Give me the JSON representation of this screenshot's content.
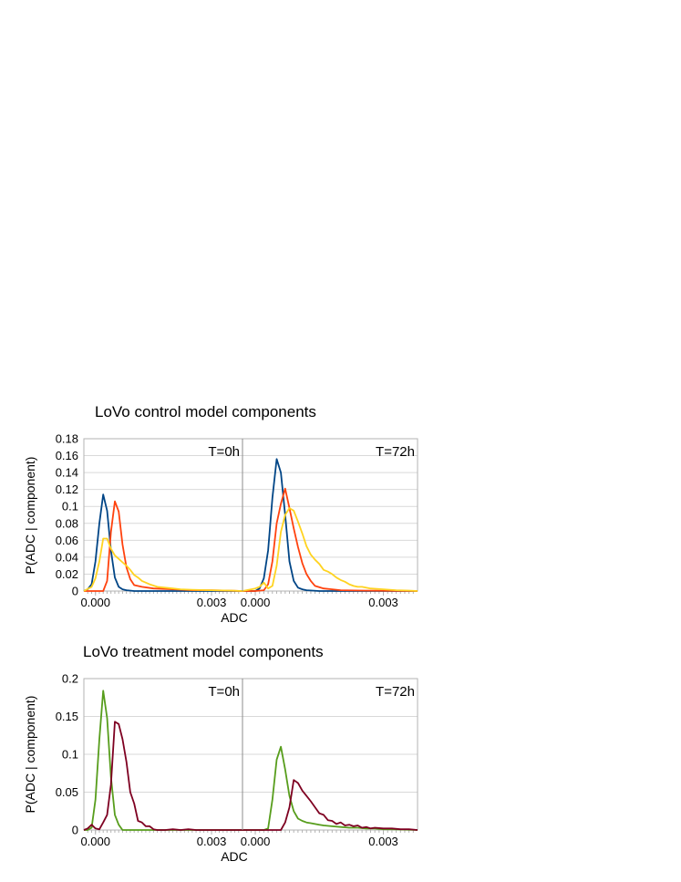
{
  "chart_data": [
    {
      "type": "line",
      "title": "LoVo control model components",
      "xlabel": "ADC",
      "ylabel": "P(ADC | component)",
      "ylim": [
        0,
        0.18
      ],
      "yticks": [
        "0",
        "0.02",
        "0.04",
        "0.06",
        "0.08",
        "0.1",
        "0.12",
        "0.14",
        "0.16",
        "0.18"
      ],
      "grid": true,
      "legend": "none",
      "panels": [
        {
          "label": "T=0h",
          "xlim": [
            -0.0003,
            0.0038
          ],
          "xticks": [
            "0.000",
            "0.003"
          ],
          "series": [
            {
              "color": "#004586",
              "x": [
                -0.0003,
                -0.0002,
                -0.0001,
                0.0,
                0.0001,
                0.0002,
                0.0003,
                0.0004,
                0.0005,
                0.0006,
                0.0007,
                0.0008,
                0.001,
                0.0012,
                0.0015,
                0.002,
                0.0038
              ],
              "y": [
                0,
                0.002,
                0.008,
                0.035,
                0.08,
                0.114,
                0.095,
                0.048,
                0.016,
                0.005,
                0.002,
                0.001,
                0,
                0,
                0,
                0,
                0
              ]
            },
            {
              "color": "#ff420e",
              "x": [
                -0.0003,
                0.0,
                0.0002,
                0.0003,
                0.0004,
                0.0005,
                0.0006,
                0.0007,
                0.0008,
                0.0009,
                0.001,
                0.0012,
                0.0015,
                0.002,
                0.0025,
                0.003,
                0.0038
              ],
              "y": [
                0,
                0,
                0,
                0.012,
                0.07,
                0.106,
                0.094,
                0.055,
                0.028,
                0.014,
                0.007,
                0.005,
                0.003,
                0.002,
                0.001,
                0.001,
                0
              ]
            },
            {
              "color": "#ffd320",
              "x": [
                -0.0003,
                -0.0001,
                0.0,
                0.0001,
                0.0002,
                0.0003,
                0.0004,
                0.0005,
                0.0006,
                0.0007,
                0.0008,
                0.0009,
                0.001,
                0.0011,
                0.0012,
                0.0014,
                0.0016,
                0.0018,
                0.002,
                0.0022,
                0.0025,
                0.003,
                0.0035,
                0.0038
              ],
              "y": [
                0,
                0.005,
                0.015,
                0.035,
                0.062,
                0.062,
                0.05,
                0.042,
                0.038,
                0.034,
                0.03,
                0.025,
                0.019,
                0.016,
                0.012,
                0.008,
                0.005,
                0.004,
                0.003,
                0.002,
                0.0015,
                0.001,
                0.0005,
                0
              ]
            }
          ]
        },
        {
          "label": "T=72h",
          "xlim": [
            -0.0003,
            0.0038
          ],
          "xticks": [
            "0.000",
            "0.003"
          ],
          "series": [
            {
              "color": "#004586",
              "x": [
                -0.0003,
                0.0,
                0.0001,
                0.0002,
                0.0003,
                0.0004,
                0.0005,
                0.0006,
                0.0007,
                0.0008,
                0.0009,
                0.001,
                0.0011,
                0.0012,
                0.0015,
                0.002,
                0.0038
              ],
              "y": [
                0,
                0,
                0.003,
                0.015,
                0.048,
                0.11,
                0.156,
                0.14,
                0.09,
                0.035,
                0.012,
                0.004,
                0.002,
                0.001,
                0,
                0,
                0
              ]
            },
            {
              "color": "#ff420e",
              "x": [
                -0.0003,
                0.0,
                0.0002,
                0.0003,
                0.0004,
                0.0005,
                0.0006,
                0.0007,
                0.0008,
                0.0009,
                0.001,
                0.0011,
                0.0012,
                0.0013,
                0.0014,
                0.0016,
                0.0018,
                0.002,
                0.0025,
                0.0038
              ],
              "y": [
                0,
                0,
                0.001,
                0.008,
                0.035,
                0.08,
                0.103,
                0.121,
                0.098,
                0.074,
                0.052,
                0.033,
                0.02,
                0.012,
                0.006,
                0.003,
                0.002,
                0.001,
                0.0005,
                0
              ]
            },
            {
              "color": "#ffd320",
              "x": [
                -0.0003,
                0.0,
                0.0001,
                0.0002,
                0.0003,
                0.0004,
                0.0005,
                0.0006,
                0.0007,
                0.0008,
                0.0009,
                0.001,
                0.0011,
                0.0012,
                0.0013,
                0.0014,
                0.0015,
                0.0016,
                0.0017,
                0.0018,
                0.0019,
                0.002,
                0.0021,
                0.0022,
                0.0023,
                0.0024,
                0.0025,
                0.0027,
                0.003,
                0.0033,
                0.0036,
                0.0038
              ],
              "y": [
                0,
                0.003,
                0.005,
                0.01,
                0.003,
                0.006,
                0.03,
                0.07,
                0.09,
                0.098,
                0.095,
                0.082,
                0.068,
                0.053,
                0.043,
                0.037,
                0.032,
                0.025,
                0.023,
                0.02,
                0.016,
                0.013,
                0.011,
                0.008,
                0.006,
                0.005,
                0.005,
                0.003,
                0.002,
                0.001,
                0.0005,
                0
              ]
            }
          ]
        }
      ]
    },
    {
      "type": "line",
      "title": "LoVo treatment model components",
      "xlabel": "ADC",
      "ylabel": "P(ADC | component)",
      "ylim": [
        0,
        0.2
      ],
      "yticks": [
        "0",
        "0.05",
        "0.1",
        "0.15",
        "0.2"
      ],
      "grid": true,
      "legend": "none",
      "panels": [
        {
          "label": "T=0h",
          "xlim": [
            -0.0003,
            0.0038
          ],
          "xticks": [
            "0.000",
            "0.003"
          ],
          "series": [
            {
              "color": "#579d1c",
              "x": [
                -0.0003,
                -0.0002,
                -0.0001,
                0.0,
                0.0001,
                0.0002,
                0.0003,
                0.0004,
                0.0005,
                0.0006,
                0.0007,
                0.0008,
                0.0009,
                0.001,
                0.0015,
                0.002,
                0.0038
              ],
              "y": [
                0,
                0,
                0.003,
                0.04,
                0.12,
                0.184,
                0.148,
                0.07,
                0.02,
                0.007,
                0,
                0,
                0,
                0,
                0,
                0,
                0
              ]
            },
            {
              "color": "#7e0021",
              "x": [
                -0.0003,
                -0.0002,
                -0.0001,
                0.0,
                0.0001,
                0.0002,
                0.0003,
                0.0004,
                0.0005,
                0.0006,
                0.0007,
                0.0008,
                0.0009,
                0.001,
                0.0011,
                0.0012,
                0.0013,
                0.0014,
                0.0015,
                0.0016,
                0.0018,
                0.002,
                0.0022,
                0.0024,
                0.0026,
                0.003,
                0.0038
              ],
              "y": [
                0,
                0.002,
                0.007,
                0.002,
                0.001,
                0.01,
                0.02,
                0.06,
                0.143,
                0.14,
                0.12,
                0.09,
                0.05,
                0.035,
                0.012,
                0.01,
                0.005,
                0.005,
                0.001,
                0,
                0,
                0.001,
                0,
                0.001,
                0,
                0,
                0
              ]
            }
          ]
        },
        {
          "label": "T=72h",
          "xlim": [
            -0.0003,
            0.0038
          ],
          "xticks": [
            "0.000",
            "0.003"
          ],
          "series": [
            {
              "color": "#579d1c",
              "x": [
                -0.0003,
                0.0,
                0.0002,
                0.0003,
                0.0004,
                0.0005,
                0.0006,
                0.0007,
                0.0008,
                0.0009,
                0.001,
                0.0011,
                0.0012,
                0.0013,
                0.0014,
                0.0015,
                0.0016,
                0.0018,
                0.002,
                0.0022,
                0.0024,
                0.0026,
                0.0028,
                0.003,
                0.0032,
                0.0035,
                0.0038
              ],
              "y": [
                0,
                0,
                0,
                0.002,
                0.04,
                0.093,
                0.11,
                0.08,
                0.045,
                0.025,
                0.015,
                0.012,
                0.01,
                0.009,
                0.008,
                0.007,
                0.006,
                0.005,
                0.004,
                0.003,
                0.003,
                0.002,
                0.002,
                0.001,
                0.001,
                0.0005,
                0
              ]
            },
            {
              "color": "#7e0021",
              "x": [
                -0.0003,
                0.0,
                0.0002,
                0.0004,
                0.0006,
                0.0007,
                0.0008,
                0.0009,
                0.001,
                0.0011,
                0.0012,
                0.0013,
                0.0014,
                0.0015,
                0.0016,
                0.0017,
                0.0018,
                0.0019,
                0.002,
                0.0021,
                0.0022,
                0.0023,
                0.0024,
                0.0025,
                0.0026,
                0.0027,
                0.0028,
                0.003,
                0.0032,
                0.0034,
                0.0036,
                0.0038
              ],
              "y": [
                0,
                0,
                0,
                0,
                0,
                0.01,
                0.03,
                0.066,
                0.062,
                0.052,
                0.045,
                0.038,
                0.03,
                0.022,
                0.02,
                0.013,
                0.012,
                0.008,
                0.01,
                0.006,
                0.007,
                0.005,
                0.006,
                0.003,
                0.004,
                0.002,
                0.003,
                0.002,
                0.002,
                0.001,
                0.001,
                0
              ]
            }
          ]
        }
      ]
    }
  ]
}
